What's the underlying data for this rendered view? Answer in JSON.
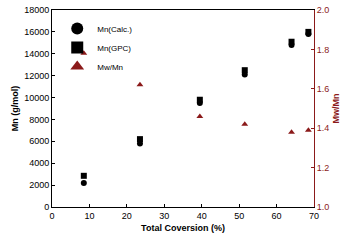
{
  "chart_data": {
    "type": "scatter",
    "x_label": "Total Coversion (%)",
    "y_label": "Mn (g/mol)",
    "y2_label": "Mw/Mn",
    "x": [
      8.5,
      23.5,
      39.5,
      51.5,
      64,
      68.5
    ],
    "series": [
      {
        "name": "Mn(Calc.)",
        "color": "#000000",
        "marker": "circle",
        "values": [
          2200,
          5800,
          9500,
          12100,
          14800,
          15800
        ]
      },
      {
        "name": "Mn(GPC)",
        "color": "#000000",
        "marker": "square",
        "values": [
          2850,
          6200,
          9800,
          12500,
          15100,
          16000
        ]
      },
      {
        "name": "Mw/Mn",
        "color": "#8b1a1a",
        "marker": "triangle-up",
        "axis": "y2",
        "values": [
          1.78,
          1.62,
          1.46,
          1.42,
          1.38,
          1.39
        ]
      }
    ],
    "xlim": [
      0,
      70
    ],
    "xticks": [
      0,
      10,
      20,
      30,
      40,
      50,
      60,
      70
    ],
    "ylim": [
      0,
      18000
    ],
    "yticks": [
      0,
      2000,
      4000,
      6000,
      8000,
      10000,
      12000,
      14000,
      16000,
      18000
    ],
    "y2lim": [
      1,
      2
    ],
    "y2ticks": [
      {
        "value": 1,
        "label": "1.0"
      },
      1.2,
      1.4,
      1.6,
      1.8,
      {
        "value": 2,
        "label": "2.0"
      }
    ],
    "grid": false,
    "legend": "upper left"
  }
}
